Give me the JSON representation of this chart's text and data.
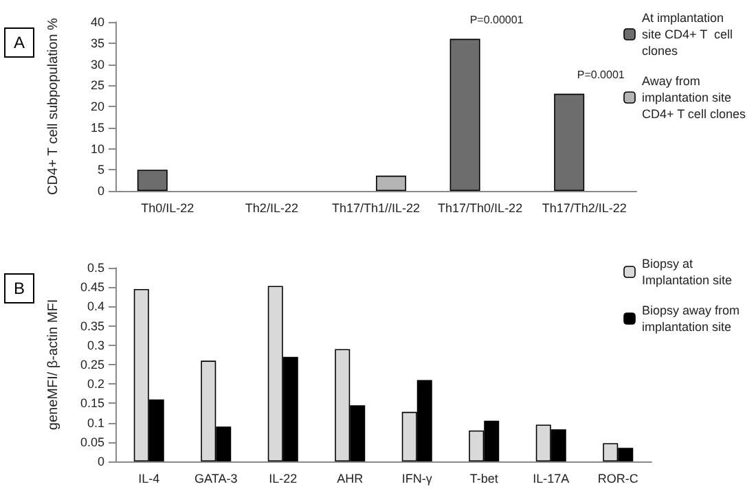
{
  "chart_data": [
    {
      "type": "bar",
      "ylabel": "CD4+ T cell subpopulation %",
      "categories": [
        "Th0/IL-22",
        "Th2/IL-22",
        "Th17/Th1//IL-22",
        "Th17/Th0/IL-22",
        "Th17/Th2/IL-22"
      ],
      "series": [
        {
          "name": "At implantation site CD4+ T  cell clones",
          "color": "#6d6d6d",
          "values": [
            5,
            0,
            0,
            36,
            23
          ]
        },
        {
          "name": "Away from implantation site CD4+ T cell clones",
          "color": "#b4b4b4",
          "values": [
            0,
            0,
            3.6,
            0,
            0
          ]
        }
      ],
      "ylim": [
        0,
        40
      ],
      "yticks": [
        0,
        5,
        10,
        15,
        20,
        25,
        30,
        35,
        40
      ],
      "grid": false,
      "legend": "top right",
      "annotations": [
        "A",
        "P=0.00001",
        "P=0.0001"
      ]
    },
    {
      "type": "bar",
      "ylabel": "geneMFI/ β-actin MFI",
      "categories": [
        "IL-4",
        "GATA-3",
        "IL-22",
        "AHR",
        "IFN-γ",
        "T-bet",
        "IL-17A",
        "ROR-C"
      ],
      "series": [
        {
          "name": "Biopsy at Implantation site",
          "color": "#d9d9d9",
          "values": [
            0.445,
            0.26,
            0.453,
            0.29,
            0.128,
            0.08,
            0.095,
            0.047
          ]
        },
        {
          "name": "Biopsy away from implantation site",
          "color": "#000000",
          "values": [
            0.16,
            0.09,
            0.27,
            0.145,
            0.21,
            0.105,
            0.083,
            0.035
          ]
        }
      ],
      "ylim": [
        0,
        0.5
      ],
      "yticks": [
        0,
        0.05,
        0.1,
        0.15,
        0.2,
        0.25,
        0.3,
        0.35,
        0.4,
        0.45,
        0.5
      ],
      "grid": false,
      "legend": "top right",
      "annotations": [
        "B"
      ]
    }
  ]
}
